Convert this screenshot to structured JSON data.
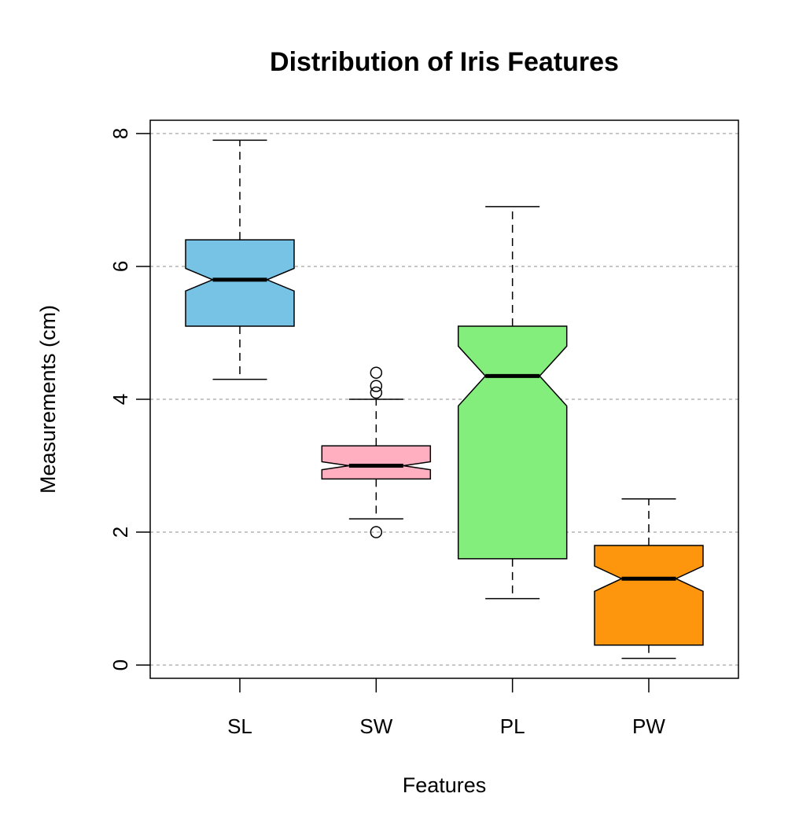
{
  "chart_data": {
    "type": "boxplot",
    "title": "Distribution of Iris Features",
    "xlabel": "Features",
    "ylabel": "Measurements (cm)",
    "ylim": [
      -0.2,
      8.2
    ],
    "yticks": [
      "0",
      "2",
      "4",
      "6",
      "8"
    ],
    "grid": "horizontal-dashed",
    "notched": true,
    "categories": [
      "SL",
      "SW",
      "PL",
      "PW"
    ],
    "boxes": [
      {
        "label": "SL",
        "min": 4.3,
        "q1": 5.1,
        "median": 5.8,
        "q3": 6.4,
        "max": 7.9,
        "notch_low": 5.63,
        "notch_high": 5.97,
        "outliers": [],
        "color": "#76c3e5"
      },
      {
        "label": "SW",
        "min": 2.2,
        "q1": 2.8,
        "median": 3.0,
        "q3": 3.3,
        "max": 4.0,
        "notch_low": 2.94,
        "notch_high": 3.06,
        "outliers": [
          4.4,
          4.2,
          4.1,
          2.0
        ],
        "color": "#ffafc0"
      },
      {
        "label": "PL",
        "min": 1.0,
        "q1": 1.6,
        "median": 4.35,
        "q3": 5.1,
        "max": 6.9,
        "notch_low": 3.9,
        "notch_high": 4.8,
        "outliers": [],
        "color": "#84ee7d"
      },
      {
        "label": "PW",
        "min": 0.1,
        "q1": 0.3,
        "median": 1.3,
        "q3": 1.8,
        "max": 2.5,
        "notch_low": 1.11,
        "notch_high": 1.49,
        "outliers": [],
        "color": "#fd960c"
      }
    ]
  }
}
